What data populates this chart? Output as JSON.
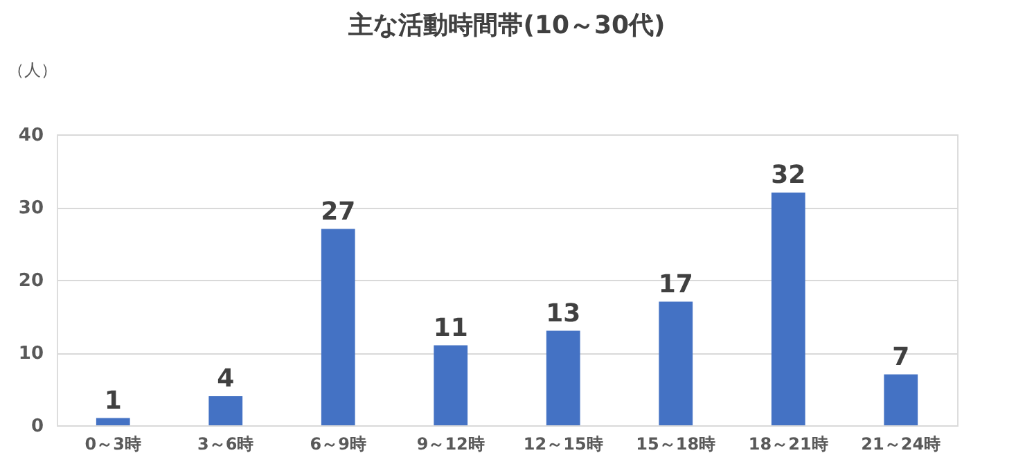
{
  "chart_data": {
    "type": "bar",
    "title": "主な活動時間帯(10～30代)",
    "ylabel": "（人）",
    "categories": [
      "0～3時",
      "3～6時",
      "6～9時",
      "9～12時",
      "12～15時",
      "15～18時",
      "18～21時",
      "21～24時"
    ],
    "values": [
      1,
      4,
      27,
      11,
      13,
      17,
      32,
      7
    ],
    "color": "#4472c4",
    "ylim": [
      0,
      40
    ],
    "yticks": [
      0,
      10,
      20,
      30,
      40
    ],
    "grid": "y",
    "data_labels": true
  }
}
